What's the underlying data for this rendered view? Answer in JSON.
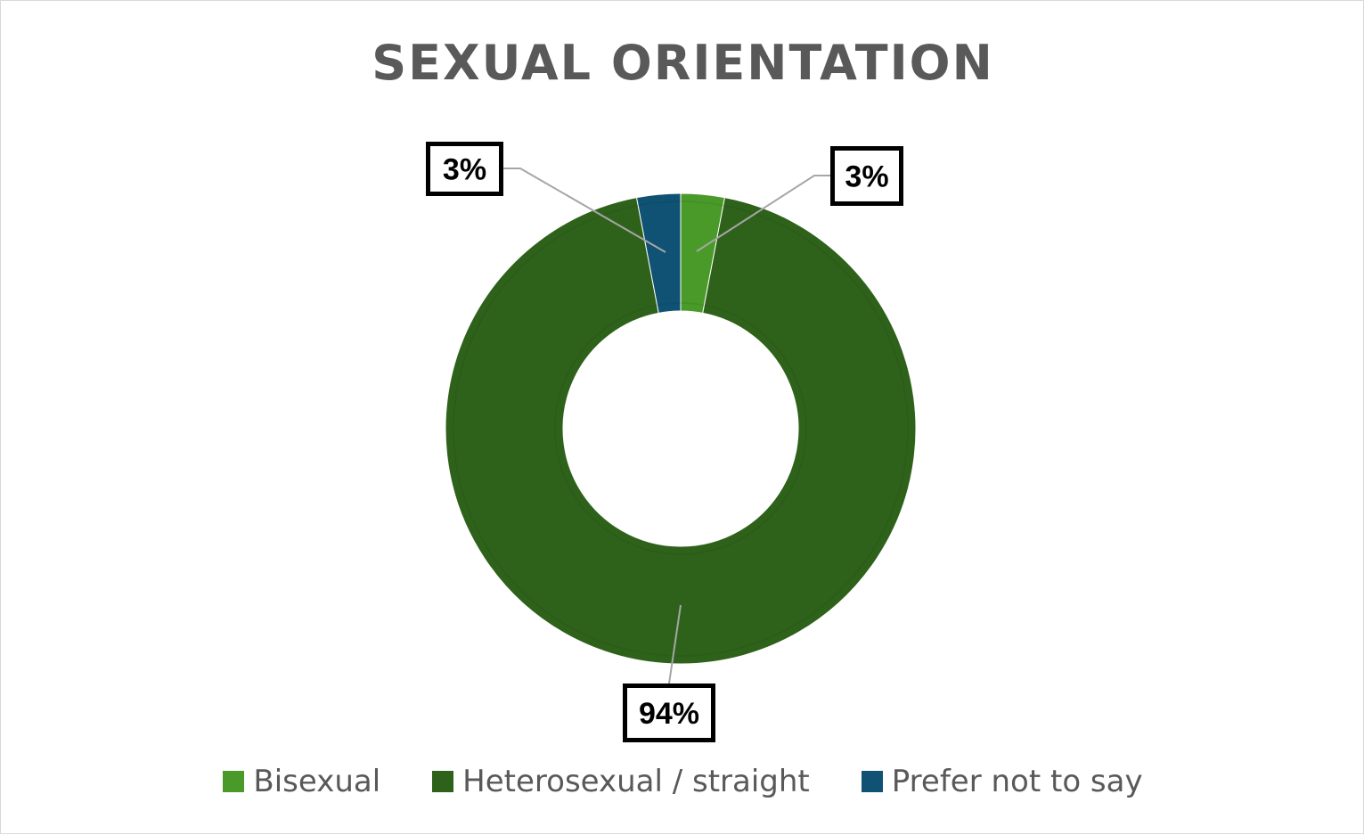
{
  "chart_data": {
    "type": "pie",
    "subtype": "doughnut",
    "title": "SEXUAL ORIENTATION",
    "categories": [
      "Bisexual",
      "Heterosexual / straight",
      "Prefer not to say"
    ],
    "values": [
      3,
      94,
      3
    ],
    "labels": [
      "3%",
      "94%",
      "3%"
    ],
    "colors": [
      "#4a9a2a",
      "#2e621b",
      "#0f5273"
    ],
    "legend_position": "bottom"
  }
}
